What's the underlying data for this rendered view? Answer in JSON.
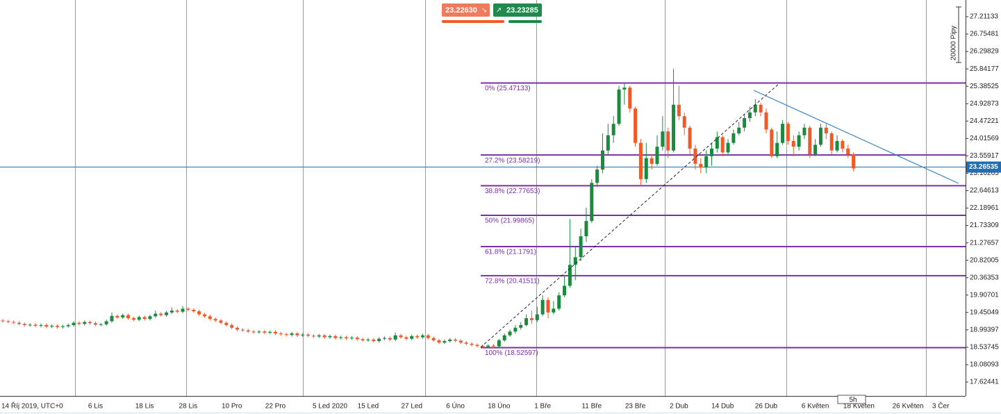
{
  "chart_data": {
    "type": "candlestick",
    "trade": {
      "sell": "23.22630",
      "buy": "23.23285"
    },
    "range_label": "20000 Pipy",
    "timeframe_label": "5h",
    "categories": [
      "14 Říj 2019, UTC+0",
      null,
      null,
      null,
      null,
      null,
      null,
      null,
      null,
      null,
      null,
      null,
      null,
      null,
      null,
      null,
      null,
      "6 Lis",
      null,
      null,
      null,
      null,
      null,
      null,
      null,
      null,
      "18 Lis",
      null,
      null,
      null,
      null,
      null,
      null,
      null,
      "28 Lis",
      null,
      null,
      null,
      null,
      null,
      null,
      null,
      "10 Pro",
      null,
      null,
      null,
      null,
      null,
      null,
      null,
      "22 Pro",
      null,
      null,
      null,
      null,
      null,
      null,
      null,
      null,
      null,
      "5 Led 2020",
      null,
      null,
      null,
      null,
      null,
      null,
      "15 Led",
      null,
      null,
      null,
      null,
      null,
      null,
      null,
      "27 Led",
      null,
      null,
      null,
      null,
      null,
      null,
      null,
      "6 Úno",
      null,
      null,
      null,
      null,
      null,
      null,
      null,
      "18 Úno",
      null,
      null,
      null,
      null,
      null,
      null,
      null,
      "1 Bře",
      null,
      null,
      null,
      null,
      null,
      null,
      null,
      null,
      "11 Bře",
      null,
      null,
      null,
      null,
      null,
      null,
      null,
      "23 Bře",
      null,
      null,
      null,
      null,
      null,
      null,
      null,
      "2 Dub",
      null,
      null,
      null,
      null,
      null,
      null,
      null,
      "14 Dub",
      null,
      null,
      null,
      null,
      null,
      null,
      null,
      "26 Dub",
      null,
      null,
      null,
      null,
      null,
      null,
      null,
      null,
      "6 Květen",
      null,
      null,
      null,
      null,
      null,
      null,
      null,
      "18 Květen",
      null,
      null,
      null,
      null,
      null,
      null,
      null,
      null,
      "26 Květen",
      null,
      null,
      null,
      null,
      null,
      "3 Čer"
    ],
    "open": [
      19.24,
      19.22,
      19.2,
      19.18,
      19.15,
      19.12,
      19.13,
      19.1,
      19.12,
      19.08,
      19.1,
      19.07,
      19.09,
      19.12,
      19.18,
      19.15,
      19.2,
      19.17,
      19.13,
      19.14,
      19.22,
      19.36,
      19.32,
      19.38,
      19.3,
      19.26,
      19.33,
      19.28,
      19.35,
      19.42,
      19.38,
      19.45,
      19.5,
      19.47,
      19.55,
      19.52,
      19.48,
      19.4,
      19.35,
      19.28,
      19.24,
      19.18,
      19.12,
      19.05,
      19.0,
      18.98,
      18.95,
      18.93,
      18.95,
      18.92,
      18.94,
      18.9,
      18.88,
      18.86,
      18.9,
      18.85,
      18.87,
      18.84,
      18.82,
      18.85,
      18.8,
      18.83,
      18.78,
      18.8,
      18.77,
      18.79,
      18.75,
      18.72,
      18.74,
      18.7,
      18.76,
      18.78,
      18.74,
      18.85,
      18.8,
      18.76,
      18.83,
      18.8,
      18.85,
      18.78,
      18.72,
      18.66,
      18.7,
      18.74,
      18.71,
      18.66,
      18.63,
      18.6,
      18.57,
      18.55,
      18.58,
      18.56,
      18.72,
      18.85,
      18.95,
      19.05,
      19.12,
      19.3,
      19.25,
      19.4,
      19.78,
      19.45,
      19.55,
      19.9,
      20.15,
      20.7,
      20.9,
      21.45,
      21.85,
      22.85,
      23.2,
      23.7,
      24.1,
      24.4,
      25.3,
      25.35,
      24.8,
      23.9,
      22.95,
      23.5,
      23.35,
      23.8,
      24.2,
      23.7,
      24.9,
      24.6,
      24.3,
      23.75,
      23.35,
      23.25,
      23.55,
      23.75,
      24.05,
      23.65,
      23.9,
      24.15,
      24.3,
      24.55,
      24.7,
      24.9,
      24.7,
      24.25,
      23.55,
      23.9,
      24.4,
      23.95,
      23.8,
      24.1,
      24.3,
      23.6,
      23.85,
      24.3,
      24.15,
      23.7,
      23.95,
      23.75,
      23.6,
      null,
      null,
      null,
      null,
      null,
      null,
      null,
      null,
      null,
      null,
      null,
      null,
      null,
      null,
      null,
      null
    ],
    "high": [
      19.28,
      19.26,
      19.24,
      19.22,
      19.19,
      19.17,
      19.17,
      19.16,
      19.16,
      19.14,
      19.14,
      19.13,
      19.16,
      19.22,
      19.22,
      19.24,
      19.24,
      19.21,
      19.18,
      19.26,
      19.45,
      19.4,
      19.42,
      19.42,
      19.34,
      19.37,
      19.37,
      19.39,
      19.5,
      19.46,
      19.49,
      19.58,
      19.54,
      19.62,
      19.59,
      19.56,
      19.52,
      19.44,
      19.39,
      19.32,
      19.28,
      19.22,
      19.16,
      19.09,
      19.04,
      19.02,
      18.99,
      18.99,
      18.99,
      18.98,
      18.98,
      18.94,
      18.92,
      18.94,
      18.94,
      18.91,
      18.91,
      18.88,
      18.89,
      18.89,
      18.87,
      18.87,
      18.84,
      18.84,
      18.83,
      18.83,
      18.79,
      18.78,
      18.78,
      18.8,
      18.82,
      18.82,
      18.92,
      18.89,
      18.84,
      18.87,
      18.87,
      18.89,
      18.89,
      18.82,
      18.76,
      18.74,
      18.78,
      18.78,
      18.75,
      18.7,
      18.67,
      18.64,
      18.61,
      18.62,
      18.62,
      18.76,
      18.9,
      19.0,
      19.12,
      19.2,
      19.4,
      19.5,
      19.6,
      19.9,
      19.85,
      19.75,
      19.98,
      20.4,
      21.9,
      21.2,
      21.65,
      22.2,
      22.95,
      23.3,
      24.15,
      24.4,
      24.6,
      25.4,
      25.45,
      25.4,
      24.85,
      24.0,
      23.9,
      23.6,
      24.1,
      24.6,
      24.3,
      25.85,
      25.4,
      24.7,
      24.35,
      23.85,
      23.5,
      23.7,
      23.9,
      24.2,
      24.1,
      24.0,
      24.25,
      24.45,
      24.65,
      24.85,
      25.05,
      24.95,
      24.8,
      24.3,
      24.2,
      24.5,
      24.45,
      24.1,
      24.2,
      24.4,
      24.35,
      24.0,
      24.4,
      24.4,
      24.2,
      24.1,
      24.0,
      23.85,
      23.65,
      null,
      null,
      null,
      null,
      null,
      null,
      null,
      null,
      null,
      null,
      null,
      null,
      null,
      null,
      null,
      null
    ],
    "low": [
      19.18,
      19.16,
      19.14,
      19.11,
      19.08,
      19.08,
      19.06,
      19.06,
      19.04,
      19.04,
      19.03,
      19.03,
      19.05,
      19.08,
      19.11,
      19.11,
      19.13,
      19.09,
      19.09,
      19.1,
      19.18,
      19.28,
      19.28,
      19.26,
      19.22,
      19.22,
      19.24,
      19.24,
      19.31,
      19.34,
      19.34,
      19.41,
      19.43,
      19.43,
      19.48,
      19.44,
      19.36,
      19.31,
      19.24,
      19.2,
      19.14,
      19.08,
      19.01,
      18.96,
      18.94,
      18.91,
      18.89,
      18.89,
      18.88,
      18.88,
      18.86,
      18.84,
      18.82,
      18.82,
      18.81,
      18.81,
      18.8,
      18.78,
      18.78,
      18.76,
      18.76,
      18.74,
      18.74,
      18.73,
      18.73,
      18.71,
      18.68,
      18.68,
      18.66,
      18.66,
      18.72,
      18.7,
      18.7,
      18.76,
      18.72,
      18.72,
      18.76,
      18.76,
      18.74,
      18.68,
      18.62,
      18.62,
      18.66,
      18.67,
      18.62,
      18.59,
      18.56,
      18.53,
      18.51,
      18.51,
      18.52,
      18.52,
      18.68,
      18.81,
      18.9,
      19.0,
      19.08,
      19.15,
      19.2,
      19.35,
      19.3,
      19.4,
      19.5,
      19.85,
      20.1,
      20.3,
      20.8,
      21.3,
      21.8,
      22.75,
      23.1,
      23.6,
      23.9,
      24.35,
      24.9,
      24.7,
      23.8,
      22.8,
      22.85,
      23.2,
      23.3,
      23.7,
      23.5,
      23.65,
      24.5,
      24.1,
      23.6,
      23.2,
      23.1,
      23.1,
      23.3,
      23.65,
      23.55,
      23.6,
      23.85,
      24.1,
      24.2,
      24.45,
      24.6,
      24.6,
      24.15,
      23.5,
      23.5,
      23.85,
      23.85,
      23.55,
      23.7,
      24.0,
      23.5,
      23.55,
      23.8,
      24.0,
      23.6,
      23.65,
      23.65,
      23.5,
      23.15,
      null,
      null,
      null,
      null,
      null,
      null,
      null,
      null,
      null,
      null,
      null,
      null,
      null,
      null,
      null,
      null
    ],
    "close": [
      19.22,
      19.2,
      19.18,
      19.15,
      19.12,
      19.13,
      19.1,
      19.12,
      19.08,
      19.1,
      19.07,
      19.09,
      19.12,
      19.18,
      19.15,
      19.2,
      19.17,
      19.13,
      19.14,
      19.22,
      19.36,
      19.32,
      19.38,
      19.3,
      19.26,
      19.33,
      19.28,
      19.35,
      19.42,
      19.38,
      19.45,
      19.5,
      19.47,
      19.55,
      19.52,
      19.48,
      19.4,
      19.35,
      19.28,
      19.24,
      19.18,
      19.12,
      19.05,
      19.0,
      18.98,
      18.95,
      18.93,
      18.95,
      18.92,
      18.94,
      18.9,
      18.88,
      18.86,
      18.9,
      18.85,
      18.87,
      18.84,
      18.82,
      18.85,
      18.8,
      18.83,
      18.78,
      18.8,
      18.77,
      18.79,
      18.75,
      18.72,
      18.74,
      18.7,
      18.76,
      18.78,
      18.74,
      18.85,
      18.8,
      18.76,
      18.83,
      18.8,
      18.85,
      18.78,
      18.72,
      18.66,
      18.7,
      18.74,
      18.71,
      18.66,
      18.63,
      18.6,
      18.57,
      18.55,
      18.58,
      18.56,
      18.72,
      18.85,
      18.95,
      19.05,
      19.12,
      19.3,
      19.25,
      19.4,
      19.78,
      19.45,
      19.55,
      19.9,
      20.15,
      20.7,
      20.9,
      21.45,
      21.85,
      22.85,
      23.2,
      23.7,
      24.1,
      24.4,
      25.3,
      25.35,
      24.8,
      23.9,
      22.95,
      23.5,
      23.35,
      23.8,
      24.2,
      23.7,
      24.9,
      24.6,
      24.3,
      23.75,
      23.35,
      23.25,
      23.55,
      23.75,
      24.05,
      23.65,
      23.9,
      24.15,
      24.3,
      24.55,
      24.7,
      24.9,
      24.7,
      24.25,
      23.55,
      23.9,
      24.4,
      23.95,
      23.8,
      24.1,
      24.3,
      23.6,
      23.85,
      24.3,
      24.15,
      23.7,
      23.95,
      23.75,
      23.6,
      23.23,
      null,
      null,
      null,
      null,
      null,
      null,
      null,
      null,
      null,
      null,
      null,
      null,
      null,
      null,
      null,
      null
    ],
    "up_color": "#1a8a3e",
    "down_color": "#f05a28",
    "ylim": [
      17.2604,
      27.6487
    ],
    "yticks": [
      27.21133,
      26.75481,
      26.29829,
      25.84177,
      25.38525,
      24.92873,
      24.47221,
      24.01569,
      23.55917,
      23.10265,
      22.64613,
      22.18961,
      21.73309,
      21.27657,
      20.82005,
      20.36353,
      19.90701,
      19.45049,
      18.99397,
      18.53745,
      18.08093,
      17.62441
    ],
    "current_price": 23.26535,
    "current_price_color": "#1f6fb5",
    "fib_color": "#7a2fa8",
    "fib_levels": [
      {
        "label": "0% (25.47133)",
        "value": 25.47133
      },
      {
        "label": "27.2% (23.58219)",
        "value": 23.58219
      },
      {
        "label": "38.8% (22.77653)",
        "value": 22.77653
      },
      {
        "label": "50% (21.99865)",
        "value": 21.99865
      },
      {
        "label": "61.8% (21.1791)",
        "value": 21.1791
      },
      {
        "label": "72.8% (20.41511)",
        "value": 20.41511
      },
      {
        "label": "100% (18.52597)",
        "value": 18.52597
      }
    ]
  }
}
